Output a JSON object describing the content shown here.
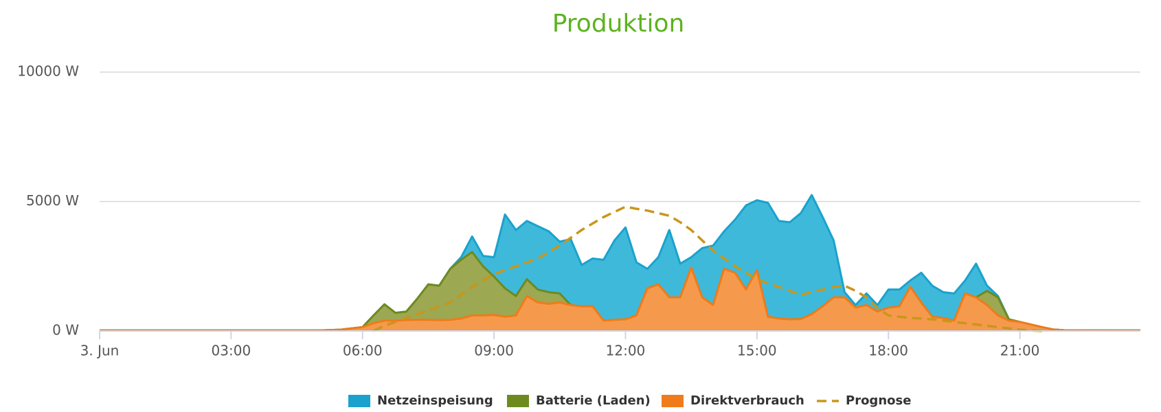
{
  "chart_data": {
    "type": "stacked-area",
    "title": "Produktion",
    "x": [
      0,
      1,
      2,
      3,
      4,
      5,
      5.5,
      5.75,
      6,
      6.25,
      6.5,
      6.75,
      7,
      7.25,
      7.5,
      7.75,
      8,
      8.25,
      8.5,
      8.75,
      9,
      9.25,
      9.5,
      9.75,
      10,
      10.25,
      10.5,
      10.75,
      11,
      11.25,
      11.5,
      11.75,
      12,
      12.25,
      12.5,
      12.75,
      13,
      13.25,
      13.5,
      13.75,
      14,
      14.25,
      14.5,
      14.75,
      15,
      15.25,
      15.5,
      15.75,
      16,
      16.25,
      16.5,
      16.75,
      17,
      17.25,
      17.5,
      17.75,
      18,
      18.25,
      18.5,
      18.75,
      19,
      19.25,
      19.5,
      19.75,
      20,
      20.25,
      20.5,
      20.75,
      21,
      21.25,
      21.5,
      21.75,
      22,
      23,
      23.75
    ],
    "series": [
      {
        "name": "Netzeinspeisung",
        "color": "#3fb9da",
        "stroke": "#1aa2cd",
        "values": [
          0,
          0,
          0,
          0,
          0,
          0,
          0,
          0,
          0,
          0,
          0,
          0,
          0,
          0,
          0,
          0,
          0,
          100,
          600,
          400,
          750,
          2850,
          2550,
          2250,
          2450,
          2350,
          2000,
          2550,
          1600,
          1850,
          2350,
          3070,
          3550,
          2050,
          750,
          1050,
          2600,
          1300,
          400,
          1900,
          2300,
          1450,
          2050,
          3250,
          2700,
          4400,
          3770,
          3750,
          4090,
          4600,
          3450,
          2200,
          200,
          100,
          450,
          250,
          700,
          650,
          250,
          1150,
          1200,
          1000,
          1050,
          500,
          1300,
          200,
          50,
          0,
          0,
          0,
          0,
          0,
          0,
          0,
          0
        ]
      },
      {
        "name": "Batterie (Laden)",
        "color": "#9ca852",
        "stroke": "#6e8a1e",
        "values": [
          0,
          0,
          0,
          0,
          0,
          0,
          0,
          0,
          0,
          300,
          630,
          300,
          330,
          820,
          1370,
          1330,
          1970,
          2270,
          2450,
          1900,
          1480,
          1100,
          750,
          650,
          500,
          450,
          350,
          0,
          0,
          0,
          0,
          0,
          0,
          0,
          0,
          0,
          0,
          0,
          0,
          0,
          0,
          0,
          0,
          0,
          0,
          0,
          0,
          0,
          0,
          0,
          0,
          0,
          0,
          0,
          0,
          0,
          0,
          0,
          0,
          0,
          0,
          0,
          0,
          0,
          0,
          550,
          700,
          50,
          0,
          0,
          0,
          0,
          0,
          0,
          0
        ]
      },
      {
        "name": "Direktverbrauch",
        "color": "#f59a4c",
        "stroke": "#ef7b1a",
        "values": [
          20,
          20,
          20,
          20,
          20,
          20,
          50,
          100,
          150,
          300,
          400,
          400,
          420,
          430,
          430,
          420,
          430,
          480,
          600,
          600,
          620,
          550,
          600,
          1350,
          1100,
          1050,
          1100,
          1000,
          950,
          950,
          400,
          430,
          450,
          600,
          1650,
          1800,
          1300,
          1300,
          2450,
          1300,
          1000,
          2400,
          2250,
          1600,
          2350,
          550,
          480,
          450,
          460,
          650,
          950,
          1300,
          1300,
          900,
          1000,
          750,
          900,
          950,
          1700,
          1100,
          550,
          500,
          400,
          1450,
          1300,
          1000,
          600,
          400,
          350,
          250,
          150,
          60,
          30,
          20,
          20
        ]
      },
      {
        "name": "Prognose",
        "color": "#c9961b",
        "dashed": true,
        "values": [
          null,
          null,
          null,
          null,
          null,
          null,
          null,
          null,
          null,
          0,
          200,
          350,
          500,
          650,
          800,
          950,
          1100,
          1400,
          1700,
          1950,
          2200,
          2350,
          2500,
          2650,
          2800,
          3050,
          3300,
          3600,
          3900,
          4150,
          4400,
          4600,
          4800,
          4720,
          4650,
          4550,
          4450,
          4200,
          3900,
          3500,
          3100,
          2800,
          2500,
          2250,
          2000,
          1850,
          1700,
          1550,
          1400,
          1500,
          1600,
          1700,
          1750,
          1550,
          1300,
          900,
          600,
          550,
          500,
          480,
          450,
          400,
          350,
          300,
          250,
          200,
          150,
          100,
          50,
          20,
          0,
          null,
          null,
          null,
          null
        ]
      }
    ],
    "xlim": [
      0,
      23.75
    ],
    "xticks": [
      {
        "value": 0,
        "label": "3. Jun"
      },
      {
        "value": 3,
        "label": "03:00"
      },
      {
        "value": 6,
        "label": "06:00"
      },
      {
        "value": 9,
        "label": "09:00"
      },
      {
        "value": 12,
        "label": "12:00"
      },
      {
        "value": 15,
        "label": "15:00"
      },
      {
        "value": 18,
        "label": "18:00"
      },
      {
        "value": 21,
        "label": "21:00"
      }
    ],
    "ylim": [
      0,
      10000
    ],
    "yticks": [
      {
        "value": 0,
        "label": "0 W"
      },
      {
        "value": 5000,
        "label": "5000 W"
      },
      {
        "value": 10000,
        "label": "10000 W"
      }
    ],
    "grid": true,
    "legend": "bottom"
  }
}
